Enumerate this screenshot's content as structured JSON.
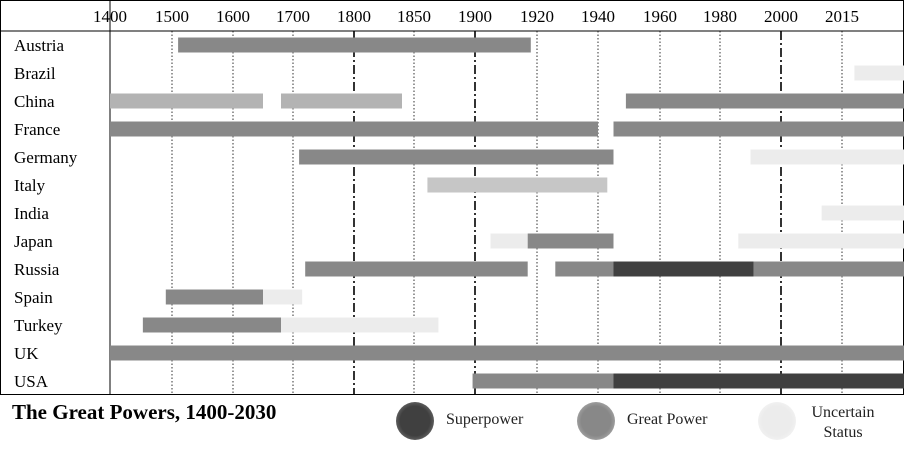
{
  "chart_data": {
    "type": "timeline",
    "title": "The Great Powers, 1400-2030",
    "x_tick_labels": [
      "1400",
      "1500",
      "1600",
      "1700",
      "1800",
      "1850",
      "1900",
      "1920",
      "1940",
      "1960",
      "1980",
      "2000",
      "2015"
    ],
    "rows": [
      "Austria",
      "Brazil",
      "China",
      "France",
      "Germany",
      "Italy",
      "India",
      "Japan",
      "Russia",
      "Spain",
      "Turkey",
      "UK",
      "USA"
    ],
    "status_levels": [
      {
        "key": "superpower",
        "label": "Superpower",
        "color": "#404040"
      },
      {
        "key": "great_power",
        "label": "Great Power",
        "color": "#888888"
      },
      {
        "key": "uncertain",
        "label": "Uncertain Status",
        "color": "#ececec"
      }
    ],
    "china_light_color": "#b3b3b3",
    "italy_color": "#c6c6c6",
    "segments": [
      {
        "row": "Austria",
        "start": 1510,
        "end": 1918,
        "status": "great_power"
      },
      {
        "row": "Brazil",
        "start": 2018,
        "end": 2030,
        "status": "uncertain"
      },
      {
        "row": "China",
        "start": 1400,
        "end": 1650,
        "status": "great_power_light"
      },
      {
        "row": "China",
        "start": 1680,
        "end": 1840,
        "status": "great_power_light"
      },
      {
        "row": "China",
        "start": 1949,
        "end": 2030,
        "status": "great_power"
      },
      {
        "row": "France",
        "start": 1400,
        "end": 1940,
        "status": "great_power"
      },
      {
        "row": "France",
        "start": 1945,
        "end": 2030,
        "status": "great_power"
      },
      {
        "row": "Germany",
        "start": 1710,
        "end": 1945,
        "status": "great_power"
      },
      {
        "row": "Germany",
        "start": 1990,
        "end": 2030,
        "status": "uncertain"
      },
      {
        "row": "Italy",
        "start": 1861,
        "end": 1943,
        "status": "italy"
      },
      {
        "row": "India",
        "start": 2010,
        "end": 2030,
        "status": "uncertain"
      },
      {
        "row": "Japan",
        "start": 1905,
        "end": 1917,
        "status": "uncertain"
      },
      {
        "row": "Japan",
        "start": 1917,
        "end": 1945,
        "status": "great_power"
      },
      {
        "row": "Japan",
        "start": 1986,
        "end": 2030,
        "status": "uncertain"
      },
      {
        "row": "Russia",
        "start": 1720,
        "end": 1917,
        "status": "great_power"
      },
      {
        "row": "Russia",
        "start": 1926,
        "end": 1945,
        "status": "great_power"
      },
      {
        "row": "Russia",
        "start": 1945,
        "end": 1991,
        "status": "superpower"
      },
      {
        "row": "Russia",
        "start": 1991,
        "end": 2030,
        "status": "great_power"
      },
      {
        "row": "Spain",
        "start": 1490,
        "end": 1650,
        "status": "great_power"
      },
      {
        "row": "Spain",
        "start": 1650,
        "end": 1715,
        "status": "uncertain"
      },
      {
        "row": "Turkey",
        "start": 1453,
        "end": 1680,
        "status": "great_power"
      },
      {
        "row": "Turkey",
        "start": 1680,
        "end": 1870,
        "status": "uncertain"
      },
      {
        "row": "UK",
        "start": 1400,
        "end": 2030,
        "status": "great_power"
      },
      {
        "row": "USA",
        "start": 1898,
        "end": 1945,
        "status": "great_power"
      },
      {
        "row": "USA",
        "start": 1945,
        "end": 2030,
        "status": "superpower"
      }
    ],
    "x_range_labels": "1400-2030",
    "grid": "vertical dotted lines at ticks, dash-dot lines at 1800 and 1900 and 2000"
  },
  "legend": {
    "superpower": "Superpower",
    "great_power": "Great Power",
    "uncertain_line1": "Uncertain",
    "uncertain_line2": "Status"
  }
}
